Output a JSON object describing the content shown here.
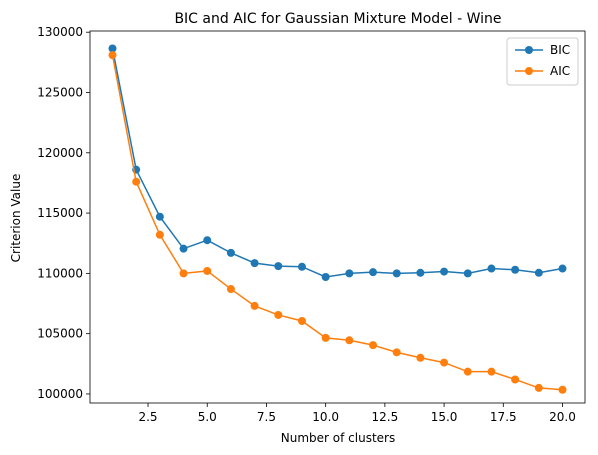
{
  "chart_data": {
    "type": "line",
    "title": "BIC and AIC for Gaussian Mixture Model - Wine",
    "xlabel": "Number of clusters",
    "ylabel": "Criterion Value",
    "x": [
      1,
      2,
      3,
      4,
      5,
      6,
      7,
      8,
      9,
      10,
      11,
      12,
      13,
      14,
      15,
      16,
      17,
      18,
      19,
      20
    ],
    "xlim": [
      0.05,
      20.95
    ],
    "ylim": [
      99250,
      130100
    ],
    "xticks": [
      2.5,
      5.0,
      7.5,
      10.0,
      12.5,
      15.0,
      17.5,
      20.0
    ],
    "xtick_labels": [
      "2.5",
      "5.0",
      "7.5",
      "10.0",
      "12.5",
      "15.0",
      "17.5",
      "20.0"
    ],
    "yticks": [
      100000,
      105000,
      110000,
      115000,
      120000,
      125000,
      130000
    ],
    "ytick_labels": [
      "100000",
      "105000",
      "110000",
      "115000",
      "120000",
      "125000",
      "130000"
    ],
    "grid": false,
    "legend_position": "top-right",
    "series": [
      {
        "name": "BIC",
        "color": "#1f77b4",
        "values": [
          128650,
          118600,
          114700,
          112050,
          112750,
          111700,
          110850,
          110600,
          110550,
          109700,
          110000,
          110100,
          110000,
          110050,
          110150,
          110000,
          110400,
          110300,
          110050,
          110400
        ]
      },
      {
        "name": "AIC",
        "color": "#ff7f0e",
        "values": [
          128100,
          117600,
          113200,
          110000,
          110200,
          108700,
          107300,
          106550,
          106050,
          104650,
          104450,
          104050,
          103450,
          103000,
          102600,
          101850,
          101850,
          101200,
          100500,
          100350
        ]
      }
    ]
  }
}
